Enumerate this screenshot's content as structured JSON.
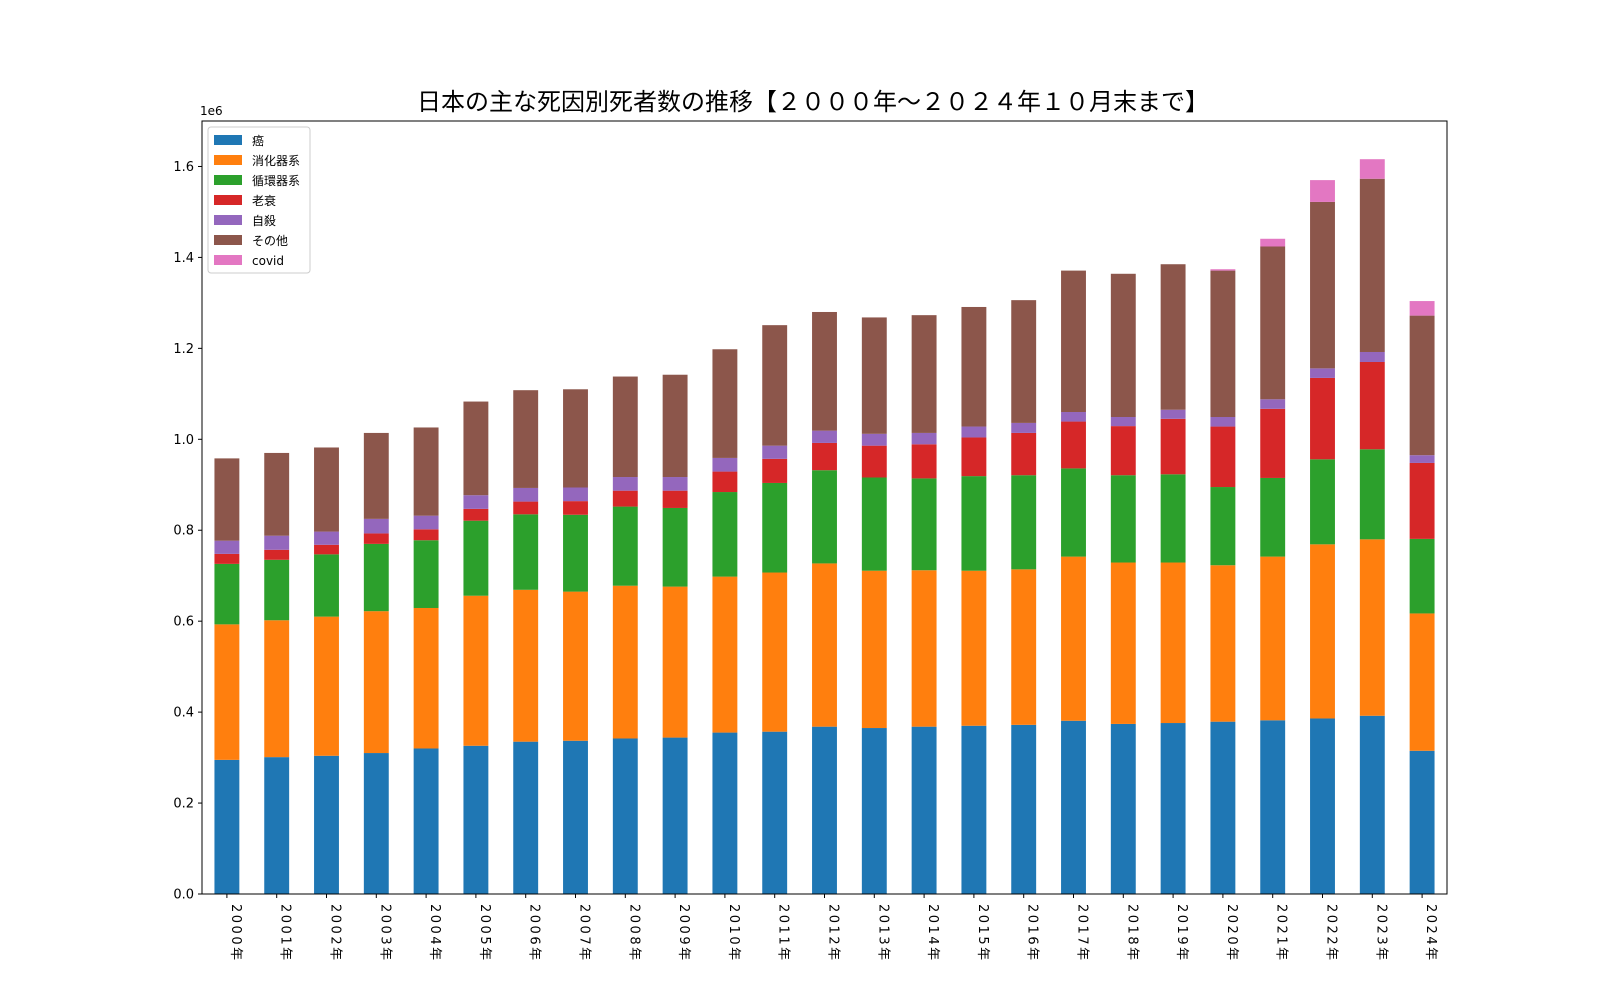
{
  "chart_data": {
    "type": "bar",
    "stacked": true,
    "title": "日本の主な死因別死者数の推移【２０００年～２０２４年１０月末まで】",
    "xlabel": "",
    "ylabel": "",
    "y_offset_label": "1e6",
    "ylim": [
      0,
      1.7
    ],
    "yticks": [
      "0.0",
      "0.2",
      "0.4",
      "0.6",
      "0.8",
      "1.0",
      "1.2",
      "1.4",
      "1.6"
    ],
    "legend_position": "top-left",
    "grid": false,
    "categories": [
      "2000年",
      "2001年",
      "2002年",
      "2003年",
      "2004年",
      "2005年",
      "2006年",
      "2007年",
      "2008年",
      "2009年",
      "2010年",
      "2011年",
      "2012年",
      "2013年",
      "2014年",
      "2015年",
      "2016年",
      "2017年",
      "2018年",
      "2019年",
      "2020年",
      "2021年",
      "2022年",
      "2023年",
      "2024年"
    ],
    "series": [
      {
        "name": "癌",
        "color": "#1f77b4",
        "values": [
          0.295,
          0.301,
          0.304,
          0.31,
          0.32,
          0.326,
          0.335,
          0.337,
          0.342,
          0.344,
          0.355,
          0.357,
          0.368,
          0.365,
          0.368,
          0.37,
          0.372,
          0.381,
          0.374,
          0.376,
          0.379,
          0.382,
          0.386,
          0.392,
          0.315
        ]
      },
      {
        "name": "消化器系",
        "color": "#ff7f0e",
        "values": [
          0.298,
          0.301,
          0.306,
          0.312,
          0.309,
          0.33,
          0.334,
          0.328,
          0.336,
          0.332,
          0.343,
          0.35,
          0.359,
          0.346,
          0.344,
          0.341,
          0.342,
          0.361,
          0.355,
          0.353,
          0.344,
          0.36,
          0.383,
          0.388,
          0.302
        ]
      },
      {
        "name": "循環器系",
        "color": "#2ca02c",
        "values": [
          0.133,
          0.133,
          0.137,
          0.148,
          0.149,
          0.165,
          0.166,
          0.169,
          0.174,
          0.173,
          0.186,
          0.197,
          0.205,
          0.205,
          0.202,
          0.208,
          0.207,
          0.194,
          0.192,
          0.194,
          0.172,
          0.173,
          0.187,
          0.198,
          0.164
        ]
      },
      {
        "name": "老衰",
        "color": "#d62728",
        "values": [
          0.022,
          0.022,
          0.021,
          0.023,
          0.024,
          0.026,
          0.028,
          0.03,
          0.035,
          0.038,
          0.045,
          0.053,
          0.06,
          0.07,
          0.075,
          0.085,
          0.093,
          0.103,
          0.108,
          0.122,
          0.133,
          0.152,
          0.179,
          0.192,
          0.167
        ]
      },
      {
        "name": "自殺",
        "color": "#9467bd",
        "values": [
          0.029,
          0.031,
          0.029,
          0.032,
          0.03,
          0.03,
          0.03,
          0.03,
          0.03,
          0.03,
          0.03,
          0.029,
          0.027,
          0.026,
          0.025,
          0.024,
          0.022,
          0.021,
          0.02,
          0.02,
          0.021,
          0.021,
          0.021,
          0.022,
          0.017
        ]
      },
      {
        "name": "その他",
        "color": "#8c564b",
        "values": [
          0.181,
          0.182,
          0.185,
          0.189,
          0.194,
          0.206,
          0.215,
          0.216,
          0.221,
          0.225,
          0.239,
          0.265,
          0.261,
          0.256,
          0.259,
          0.263,
          0.27,
          0.311,
          0.315,
          0.32,
          0.322,
          0.336,
          0.366,
          0.381,
          0.307
        ]
      },
      {
        "name": "covid",
        "color": "#e377c2",
        "values": [
          0,
          0,
          0,
          0,
          0,
          0,
          0,
          0,
          0,
          0,
          0,
          0,
          0,
          0,
          0,
          0,
          0,
          0,
          0,
          0,
          0.003,
          0.017,
          0.048,
          0.043,
          0.032
        ]
      }
    ]
  }
}
